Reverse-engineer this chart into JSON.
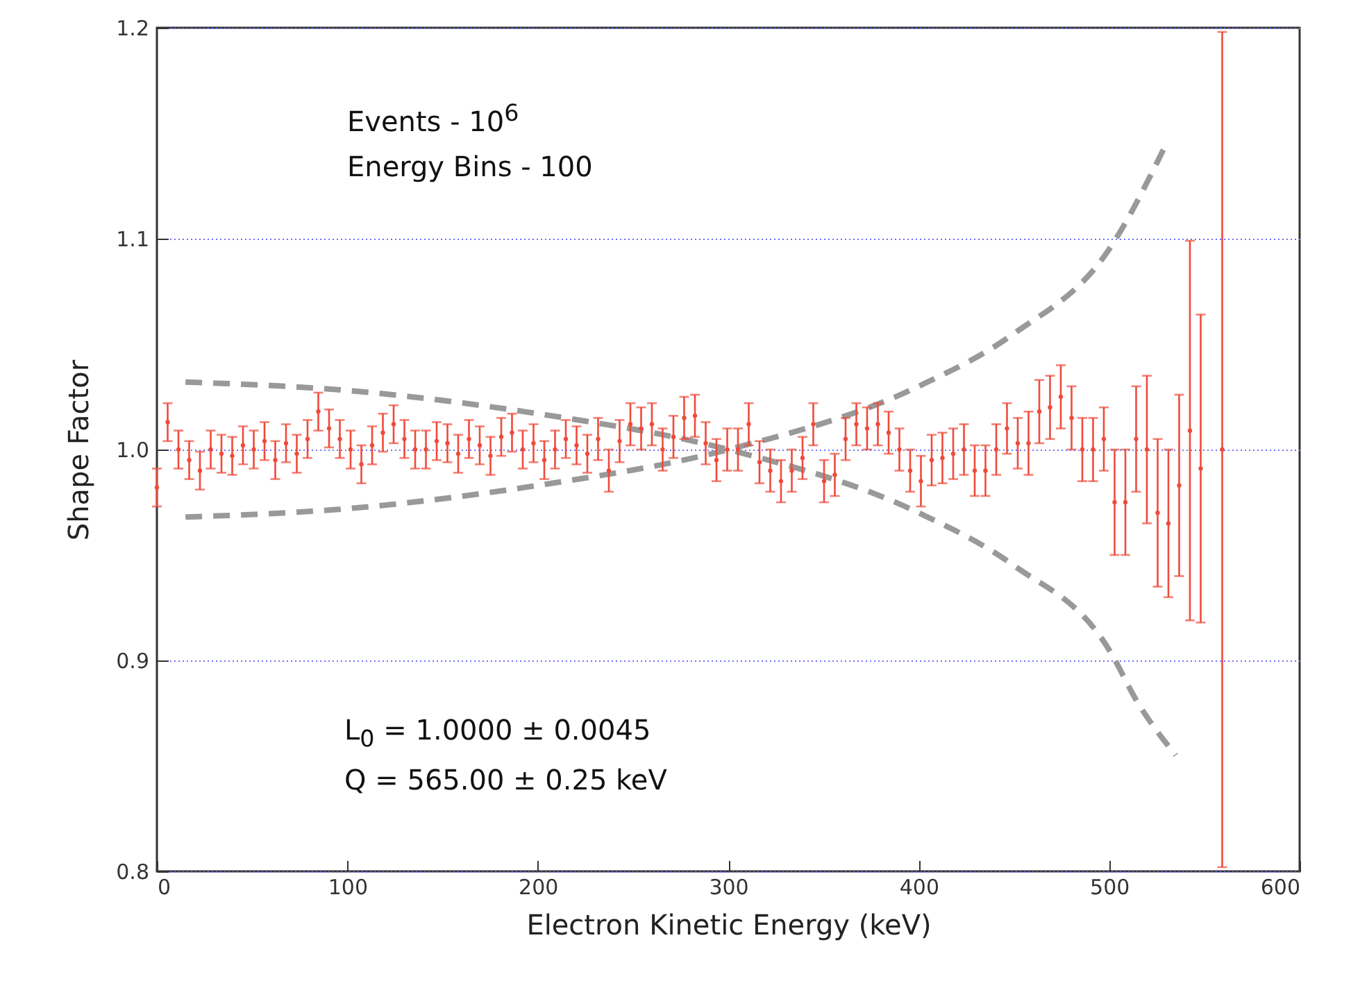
{
  "chart_data": {
    "type": "scatter",
    "xlabel": "Electron Kinetic Energy (keV)",
    "ylabel": "Shape Factor",
    "annotations": [
      "Events - 10$^{6}$",
      "Energy Bins - 100",
      "L$_{0}$ = 1.0000 ± 0.0045",
      "Q = 565.00 ± 0.25 keV"
    ],
    "xlim": [
      0,
      600
    ],
    "xticks": [
      0,
      100,
      200,
      300,
      400,
      500,
      600
    ],
    "ylim": [
      0.8,
      1.2
    ],
    "yticks": [
      0.8,
      0.9,
      {
        "value": 1,
        "label": "1.0"
      },
      1.1,
      1.2
    ],
    "grid": "y",
    "series": [
      {
        "marker": "circle",
        "color": "#f04a3a",
        "x": [
          0,
          5.65,
          11.3,
          16.95,
          22.6,
          28.25,
          33.9,
          39.55,
          45.2,
          50.85,
          56.5,
          62.15,
          67.8,
          73.45,
          79.1,
          84.75,
          90.4,
          96.05,
          101.7,
          107.35,
          113,
          118.65,
          124.3,
          129.95,
          135.6,
          141.25,
          146.9,
          152.55,
          158.2,
          163.85,
          169.5,
          175.15,
          180.8,
          186.45,
          192.1,
          197.75,
          203.4,
          209.05,
          214.7,
          220.35,
          226,
          231.65,
          237.3,
          242.95,
          248.6,
          254.25,
          259.9,
          265.55,
          271.2,
          276.85,
          282.5,
          288.15,
          293.8,
          299.45,
          305.1,
          310.75,
          316.4,
          322.05,
          327.7,
          333.35,
          339,
          344.65,
          350.3,
          355.95,
          361.6,
          367.25,
          372.9,
          378.55,
          384.2,
          389.85,
          395.5,
          401.15,
          406.8,
          412.45,
          418.1,
          423.75,
          429.4,
          435.05,
          440.7,
          446.35,
          452,
          457.65,
          463.3,
          468.95,
          474.6,
          480.25,
          485.9,
          491.55,
          497.2,
          502.85,
          508.5,
          514.15,
          519.8,
          525.45,
          531.1,
          536.75,
          542.4,
          548.05,
          559.35
        ],
        "values": [
          0.982,
          1.013,
          1.0,
          0.995,
          0.99,
          1.0,
          0.998,
          0.997,
          1.002,
          1.0,
          1.004,
          0.995,
          1.003,
          0.998,
          1.005,
          1.018,
          1.01,
          1.005,
          1.0,
          0.993,
          1.002,
          1.008,
          1.012,
          1.005,
          1.0,
          1.0,
          1.004,
          1.003,
          0.998,
          1.005,
          1.002,
          0.997,
          1.006,
          1.008,
          1.0,
          1.003,
          0.995,
          1.0,
          1.005,
          1.002,
          0.998,
          1.005,
          0.99,
          1.004,
          1.012,
          1.01,
          1.012,
          1.0,
          1.006,
          1.015,
          1.016,
          1.003,
          0.995,
          1.0,
          1.0,
          1.012,
          0.994,
          0.99,
          0.985,
          0.99,
          0.996,
          1.012,
          0.985,
          0.988,
          1.005,
          1.012,
          1.01,
          1.012,
          1.008,
          1.0,
          0.99,
          0.985,
          0.995,
          0.996,
          0.998,
          1.0,
          0.99,
          0.99,
          1.0,
          1.01,
          1.003,
          1.003,
          1.018,
          1.02,
          1.025,
          1.015,
          1.0,
          1.0,
          1.005,
          0.975,
          0.975,
          1.005,
          1.0,
          0.97,
          0.965,
          0.983,
          1.009,
          0.991,
          1.0
        ],
        "errors": [
          0.009,
          0.009,
          0.009,
          0.009,
          0.009,
          0.009,
          0.009,
          0.009,
          0.009,
          0.009,
          0.009,
          0.009,
          0.009,
          0.009,
          0.009,
          0.009,
          0.009,
          0.009,
          0.009,
          0.009,
          0.009,
          0.009,
          0.009,
          0.009,
          0.009,
          0.009,
          0.009,
          0.009,
          0.009,
          0.009,
          0.009,
          0.009,
          0.009,
          0.009,
          0.009,
          0.009,
          0.009,
          0.009,
          0.009,
          0.009,
          0.009,
          0.01,
          0.01,
          0.01,
          0.01,
          0.01,
          0.01,
          0.01,
          0.01,
          0.01,
          0.01,
          0.01,
          0.01,
          0.01,
          0.01,
          0.01,
          0.01,
          0.01,
          0.01,
          0.01,
          0.01,
          0.01,
          0.01,
          0.01,
          0.01,
          0.01,
          0.01,
          0.01,
          0.01,
          0.01,
          0.01,
          0.012,
          0.012,
          0.012,
          0.012,
          0.012,
          0.012,
          0.012,
          0.012,
          0.012,
          0.012,
          0.015,
          0.015,
          0.015,
          0.015,
          0.015,
          0.015,
          0.015,
          0.015,
          0.025,
          0.025,
          0.025,
          0.035,
          0.035,
          0.035,
          0.043,
          0.09,
          0.073,
          0.198
        ]
      },
      {
        "type": "line",
        "marker": "none",
        "line_style": "dashed",
        "color": "#999999",
        "x": [
          15,
          100,
          200,
          300,
          400,
          450,
          500,
          530
        ],
        "values": [
          0.968,
          0.972,
          0.983,
          1.0,
          1.03,
          1.055,
          1.095,
          1.145
        ]
      },
      {
        "type": "line",
        "marker": "none",
        "line_style": "dashed",
        "color": "#999999",
        "x": [
          15,
          100,
          200,
          300,
          400,
          450,
          500,
          515,
          535
        ],
        "values": [
          1.032,
          1.028,
          1.017,
          1.0,
          0.97,
          0.945,
          0.905,
          0.88,
          0.855
        ]
      }
    ]
  }
}
